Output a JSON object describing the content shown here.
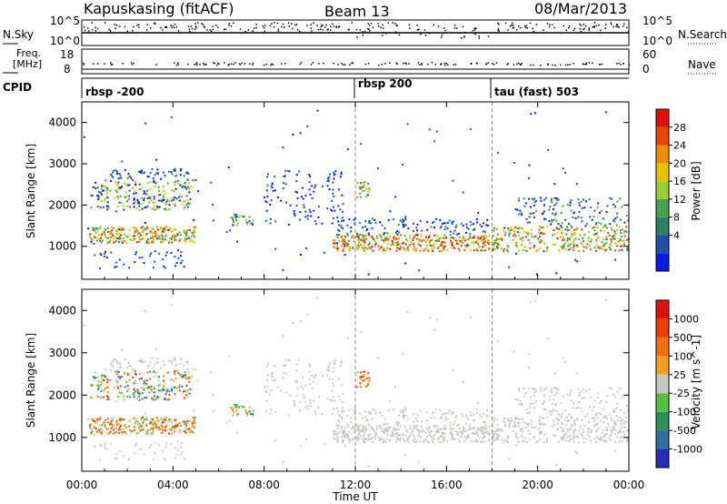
{
  "header": {
    "title": "Kapuskasing (fitACF)",
    "beam": "Beam 13",
    "date": "08/Mar/2013"
  },
  "noise_panel": {
    "left_label": "N.Sky",
    "left_ticks": [
      "10^5",
      "10^0"
    ],
    "right_ticks": [
      "10^5",
      "10^0"
    ],
    "right_label": "N.Search"
  },
  "freq_panel": {
    "left_label_1": "Freq.",
    "left_label_2": "[MHz]",
    "left_ticks": [
      "18",
      "8"
    ],
    "right_ticks": [
      "60",
      "0"
    ],
    "right_label": "Nave"
  },
  "cpid_panel": {
    "label": "CPID",
    "segments": [
      {
        "name": "rbsp -200",
        "start_hour": 0
      },
      {
        "name": "rbsp 200",
        "start_hour": 12
      },
      {
        "name": "tau (fast) 503",
        "start_hour": 18
      }
    ]
  },
  "chart_data": [
    {
      "type": "heatmap",
      "name": "power",
      "ylabel": "Slant Range [km]",
      "xlabel": "",
      "xlim": [
        0,
        24
      ],
      "ylim": [
        200,
        4500
      ],
      "y_ticks": [
        1000,
        2000,
        3000,
        4000
      ],
      "colorbar": {
        "label": "Power [dB]",
        "range": [
          0,
          32
        ],
        "ticks": [
          "28",
          "24",
          "20",
          "16",
          "12",
          "8",
          "4"
        ],
        "colors": [
          "#0a1ae6",
          "#1f4fa6",
          "#2f7d6a",
          "#48a04a",
          "#9acd32",
          "#e8c000",
          "#f08a00",
          "#e84500",
          "#e01010"
        ]
      }
    },
    {
      "type": "heatmap",
      "name": "velocity",
      "ylabel": "Slant Range [km]",
      "xlabel": "Time UT",
      "xlim": [
        0,
        24
      ],
      "ylim": [
        200,
        4500
      ],
      "y_ticks": [
        1000,
        2000,
        3000,
        4000
      ],
      "x_tick_labels": [
        "00:00",
        "04:00",
        "08:00",
        "12:00",
        "16:00",
        "20:00",
        "00:00"
      ],
      "x_tick_values": [
        0,
        4,
        8,
        12,
        16,
        20,
        24
      ],
      "colorbar": {
        "label": "Velocity [m s^-1]",
        "ticks": [
          "1000",
          "500",
          "100",
          "25",
          "-25",
          "-100",
          "-500",
          "-1000"
        ],
        "colors": [
          "#2030b0",
          "#2f6fa0",
          "#2f8f5a",
          "#55c040",
          "#c8c8c0",
          "#f0a020",
          "#f07010",
          "#e84000",
          "#e01010"
        ]
      }
    }
  ]
}
